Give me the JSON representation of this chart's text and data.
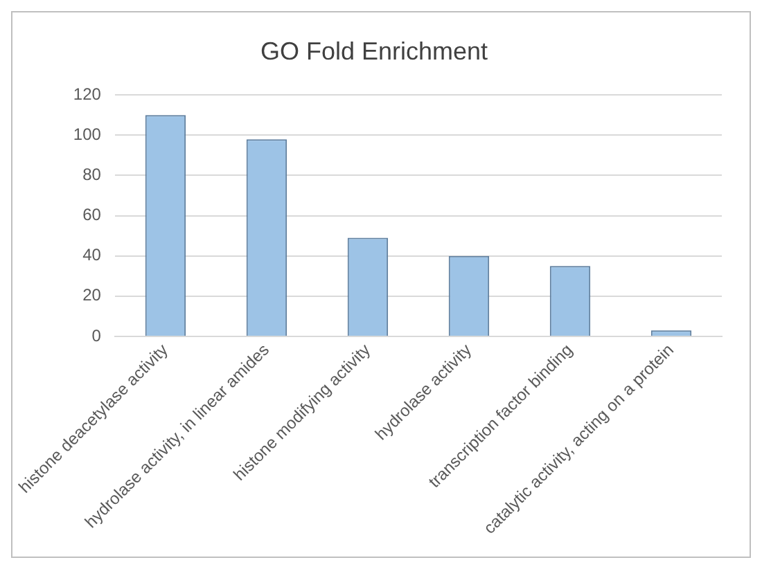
{
  "chart_data": {
    "type": "bar",
    "title": "GO Fold Enrichment",
    "categories": [
      "histone deacetylase activity",
      "hydrolase activity, in linear amides",
      "histone modifying activity",
      "hydrolase activity",
      "transcription factor binding",
      "catalytic activity, acting on a protein"
    ],
    "values": [
      110,
      98,
      49,
      40,
      35,
      3
    ],
    "color": "#9dc3e6",
    "ylim": [
      0,
      120
    ],
    "yticks": [
      0,
      20,
      40,
      60,
      80,
      100,
      120
    ],
    "grid": "y"
  }
}
